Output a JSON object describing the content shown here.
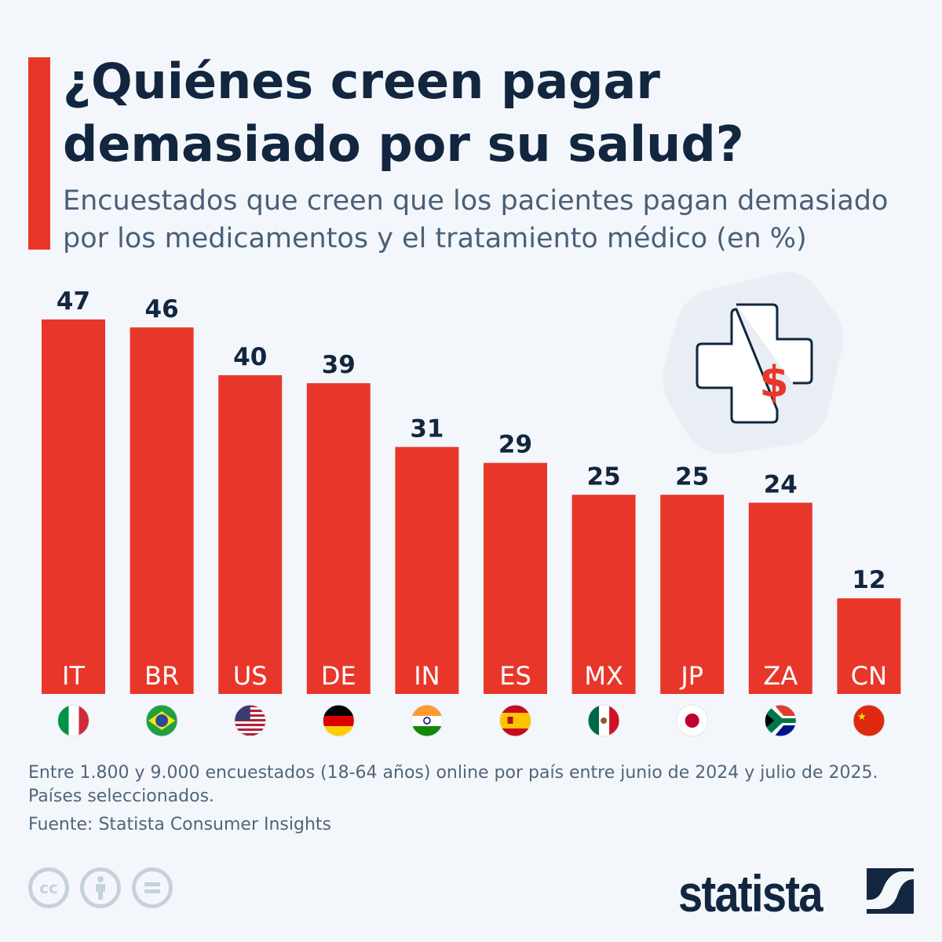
{
  "header": {
    "title_line1": "¿Quiénes creen pagar",
    "title_line2": "demasiado por su salud?",
    "subtitle_line1": "Encuestados que creen que los pacientes pagan demasiado",
    "subtitle_line2": "por los medicamentos y el tratamiento médico (en %)"
  },
  "chart_data": {
    "type": "bar",
    "categories": [
      "IT",
      "BR",
      "US",
      "DE",
      "IN",
      "ES",
      "MX",
      "JP",
      "ZA",
      "CN"
    ],
    "values": [
      47,
      46,
      40,
      39,
      31,
      29,
      25,
      25,
      24,
      12
    ],
    "title": "¿Quiénes creen pagar demasiado por su salud?",
    "ylabel": "",
    "xlabel": "",
    "ylim": [
      0,
      47
    ],
    "grid": false,
    "bar_color": "#e8372a",
    "flags": [
      "italy-flag",
      "brazil-flag",
      "usa-flag",
      "germany-flag",
      "india-flag",
      "spain-flag",
      "mexico-flag",
      "japan-flag",
      "south-africa-flag",
      "china-flag"
    ]
  },
  "footer": {
    "note_line1": "Entre 1.800 y 9.000 encuestados (18-64 años) online por país entre junio de 2024 y julio de 2025.",
    "note_line2": "Países seleccionados.",
    "source": "Fuente: Statista Consumer Insights",
    "cc_label": "cc",
    "logo": "statista"
  },
  "colors": {
    "accent": "#e8372a",
    "navy": "#12263f",
    "background": "#f3f7fb"
  },
  "icons": [
    "medical-cross-dollar-icon",
    "creative-commons-icon",
    "attribution-icon",
    "no-derivatives-icon"
  ]
}
